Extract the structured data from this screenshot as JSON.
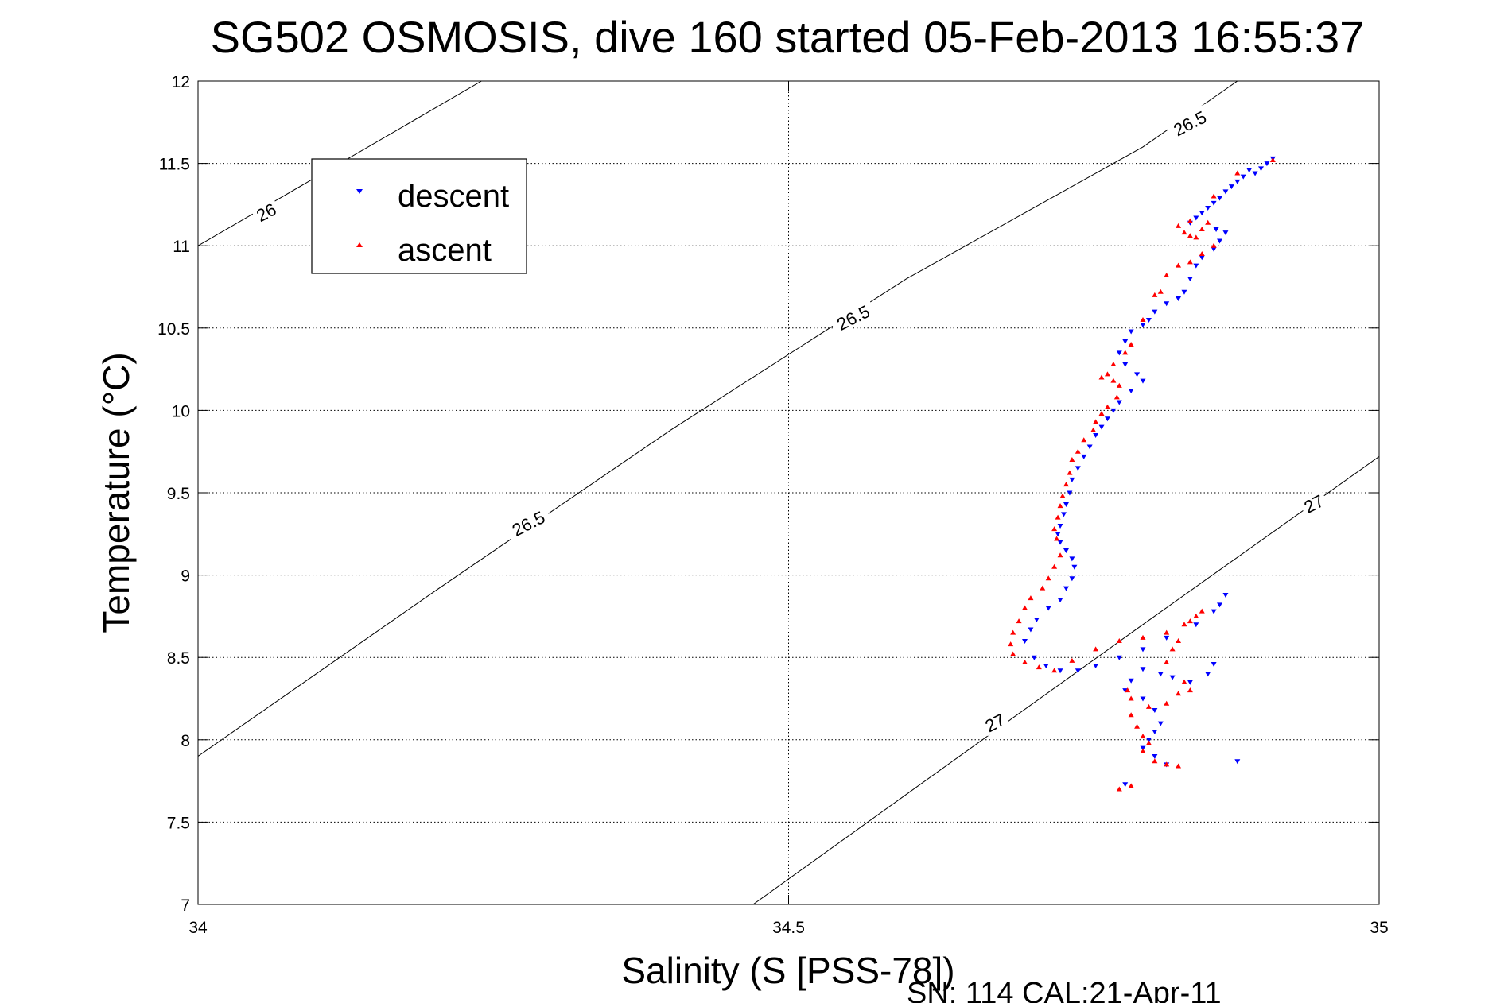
{
  "chart_data": {
    "type": "scatter",
    "title": "SG502 OSMOSIS, dive 160 started 05-Feb-2013 16:55:37",
    "xlabel": "Salinity (S [PSS-78])",
    "ylabel": "Temperature (°C)",
    "xlim": [
      34,
      35
    ],
    "ylim": [
      7,
      12
    ],
    "xticks": [
      "34",
      "34.5",
      "35"
    ],
    "yticks": [
      "7",
      "7.5",
      "8",
      "8.5",
      "9",
      "9.5",
      "10",
      "10.5",
      "11",
      "11.5",
      "12"
    ],
    "grid": true,
    "legend_position": "top-left",
    "footer": "SN: 114  CAL:21-Apr-11",
    "colors": {
      "descent": "#0000ff",
      "ascent": "#ff0000",
      "contour": "#000000"
    },
    "contours": [
      {
        "label": "26",
        "points": [
          [
            34.0,
            11.0
          ],
          [
            34.24,
            12.0
          ]
        ],
        "label_at": [
          34.058,
          11.2
        ]
      },
      {
        "label": "26.5",
        "points": [
          [
            34.0,
            7.9
          ],
          [
            34.2,
            8.9
          ],
          [
            34.4,
            9.88
          ],
          [
            34.6,
            10.8
          ],
          [
            34.8,
            11.6
          ],
          [
            34.88,
            12.0
          ]
        ],
        "label_at": [
          34.28,
          9.31
        ]
      },
      {
        "label": "26.5",
        "points": [],
        "label_at": [
          34.555,
          10.56
        ]
      },
      {
        "label": "26.5",
        "points": [],
        "label_at": [
          34.84,
          11.74
        ]
      },
      {
        "label": "27",
        "points": [
          [
            34.47,
            7.0
          ],
          [
            34.6,
            7.67
          ],
          [
            34.8,
            8.7
          ],
          [
            35.0,
            9.72
          ]
        ],
        "label_at": [
          34.675,
          8.1
        ]
      },
      {
        "label": "27",
        "points": [],
        "label_at": [
          34.945,
          9.43
        ]
      }
    ],
    "series": [
      {
        "name": "descent",
        "marker": "triangle-down",
        "points": [
          [
            34.91,
            11.53
          ],
          [
            34.905,
            11.5
          ],
          [
            34.9,
            11.47
          ],
          [
            34.895,
            11.44
          ],
          [
            34.89,
            11.46
          ],
          [
            34.885,
            11.42
          ],
          [
            34.88,
            11.39
          ],
          [
            34.875,
            11.36
          ],
          [
            34.87,
            11.33
          ],
          [
            34.865,
            11.29
          ],
          [
            34.86,
            11.26
          ],
          [
            34.855,
            11.23
          ],
          [
            34.85,
            11.2
          ],
          [
            34.845,
            11.17
          ],
          [
            34.84,
            11.14
          ],
          [
            34.862,
            11.1
          ],
          [
            34.87,
            11.08
          ],
          [
            34.865,
            11.03
          ],
          [
            34.86,
            10.98
          ],
          [
            34.85,
            10.93
          ],
          [
            34.845,
            10.88
          ],
          [
            34.84,
            10.8
          ],
          [
            34.835,
            10.72
          ],
          [
            34.83,
            10.68
          ],
          [
            34.82,
            10.65
          ],
          [
            34.81,
            10.6
          ],
          [
            34.805,
            10.55
          ],
          [
            34.8,
            10.52
          ],
          [
            34.79,
            10.48
          ],
          [
            34.785,
            10.42
          ],
          [
            34.78,
            10.35
          ],
          [
            34.785,
            10.28
          ],
          [
            34.795,
            10.22
          ],
          [
            34.8,
            10.18
          ],
          [
            34.79,
            10.12
          ],
          [
            34.78,
            10.05
          ],
          [
            34.775,
            10.0
          ],
          [
            34.77,
            9.95
          ],
          [
            34.765,
            9.9
          ],
          [
            34.76,
            9.85
          ],
          [
            34.755,
            9.78
          ],
          [
            34.75,
            9.72
          ],
          [
            34.745,
            9.65
          ],
          [
            34.74,
            9.58
          ],
          [
            34.738,
            9.5
          ],
          [
            34.735,
            9.43
          ],
          [
            34.733,
            9.37
          ],
          [
            34.73,
            9.3
          ],
          [
            34.728,
            9.25
          ],
          [
            34.73,
            9.2
          ],
          [
            34.735,
            9.15
          ],
          [
            34.74,
            9.1
          ],
          [
            34.742,
            9.05
          ],
          [
            34.74,
            8.98
          ],
          [
            34.735,
            8.92
          ],
          [
            34.73,
            8.85
          ],
          [
            34.72,
            8.8
          ],
          [
            34.71,
            8.73
          ],
          [
            34.705,
            8.67
          ],
          [
            34.7,
            8.6
          ],
          [
            34.708,
            8.5
          ],
          [
            34.718,
            8.45
          ],
          [
            34.73,
            8.42
          ],
          [
            34.745,
            8.42
          ],
          [
            34.76,
            8.45
          ],
          [
            34.78,
            8.5
          ],
          [
            34.8,
            8.55
          ],
          [
            34.82,
            8.62
          ],
          [
            34.845,
            8.7
          ],
          [
            34.86,
            8.78
          ],
          [
            34.865,
            8.82
          ],
          [
            34.87,
            8.88
          ],
          [
            34.86,
            8.46
          ],
          [
            34.855,
            8.4
          ],
          [
            34.84,
            8.35
          ],
          [
            34.825,
            8.38
          ],
          [
            34.815,
            8.4
          ],
          [
            34.8,
            8.43
          ],
          [
            34.79,
            8.36
          ],
          [
            34.785,
            8.3
          ],
          [
            34.8,
            8.25
          ],
          [
            34.81,
            8.18
          ],
          [
            34.815,
            8.1
          ],
          [
            34.81,
            8.05
          ],
          [
            34.805,
            8.0
          ],
          [
            34.8,
            7.95
          ],
          [
            34.81,
            7.9
          ],
          [
            34.82,
            7.85
          ],
          [
            34.88,
            7.87
          ],
          [
            34.785,
            7.73
          ]
        ]
      },
      {
        "name": "ascent",
        "marker": "triangle-up",
        "points": [
          [
            34.91,
            11.52
          ],
          [
            34.88,
            11.44
          ],
          [
            34.86,
            11.3
          ],
          [
            34.84,
            11.15
          ],
          [
            34.83,
            11.12
          ],
          [
            34.835,
            11.08
          ],
          [
            34.84,
            11.06
          ],
          [
            34.845,
            11.05
          ],
          [
            34.85,
            11.1
          ],
          [
            34.855,
            11.14
          ],
          [
            34.86,
            11.0
          ],
          [
            34.85,
            10.95
          ],
          [
            34.84,
            10.9
          ],
          [
            34.83,
            10.88
          ],
          [
            34.82,
            10.82
          ],
          [
            34.815,
            10.72
          ],
          [
            34.81,
            10.7
          ],
          [
            34.8,
            10.55
          ],
          [
            34.79,
            10.4
          ],
          [
            34.785,
            10.35
          ],
          [
            34.775,
            10.28
          ],
          [
            34.77,
            10.22
          ],
          [
            34.765,
            10.2
          ],
          [
            34.775,
            10.18
          ],
          [
            34.78,
            10.15
          ],
          [
            34.778,
            10.08
          ],
          [
            34.77,
            10.02
          ],
          [
            34.765,
            9.98
          ],
          [
            34.76,
            9.93
          ],
          [
            34.758,
            9.88
          ],
          [
            34.75,
            9.82
          ],
          [
            34.745,
            9.75
          ],
          [
            34.74,
            9.7
          ],
          [
            34.738,
            9.62
          ],
          [
            34.735,
            9.55
          ],
          [
            34.732,
            9.48
          ],
          [
            34.73,
            9.42
          ],
          [
            34.728,
            9.35
          ],
          [
            34.725,
            9.28
          ],
          [
            34.727,
            9.22
          ],
          [
            34.73,
            9.12
          ],
          [
            34.725,
            9.05
          ],
          [
            34.72,
            8.98
          ],
          [
            34.715,
            8.92
          ],
          [
            34.705,
            8.86
          ],
          [
            34.7,
            8.8
          ],
          [
            34.695,
            8.72
          ],
          [
            34.69,
            8.65
          ],
          [
            34.688,
            8.58
          ],
          [
            34.69,
            8.52
          ],
          [
            34.7,
            8.47
          ],
          [
            34.712,
            8.44
          ],
          [
            34.725,
            8.42
          ],
          [
            34.74,
            8.48
          ],
          [
            34.76,
            8.55
          ],
          [
            34.78,
            8.6
          ],
          [
            34.8,
            8.62
          ],
          [
            34.82,
            8.65
          ],
          [
            34.835,
            8.7
          ],
          [
            34.845,
            8.75
          ],
          [
            34.85,
            8.78
          ],
          [
            34.84,
            8.72
          ],
          [
            34.83,
            8.6
          ],
          [
            34.825,
            8.55
          ],
          [
            34.82,
            8.47
          ],
          [
            34.835,
            8.35
          ],
          [
            34.84,
            8.3
          ],
          [
            34.83,
            8.28
          ],
          [
            34.82,
            8.22
          ],
          [
            34.805,
            8.2
          ],
          [
            34.79,
            8.25
          ],
          [
            34.787,
            8.3
          ],
          [
            34.79,
            8.15
          ],
          [
            34.795,
            8.08
          ],
          [
            34.8,
            8.02
          ],
          [
            34.805,
            7.98
          ],
          [
            34.8,
            7.93
          ],
          [
            34.81,
            7.87
          ],
          [
            34.82,
            7.85
          ],
          [
            34.83,
            7.84
          ],
          [
            34.79,
            7.72
          ],
          [
            34.78,
            7.7
          ]
        ]
      }
    ]
  }
}
